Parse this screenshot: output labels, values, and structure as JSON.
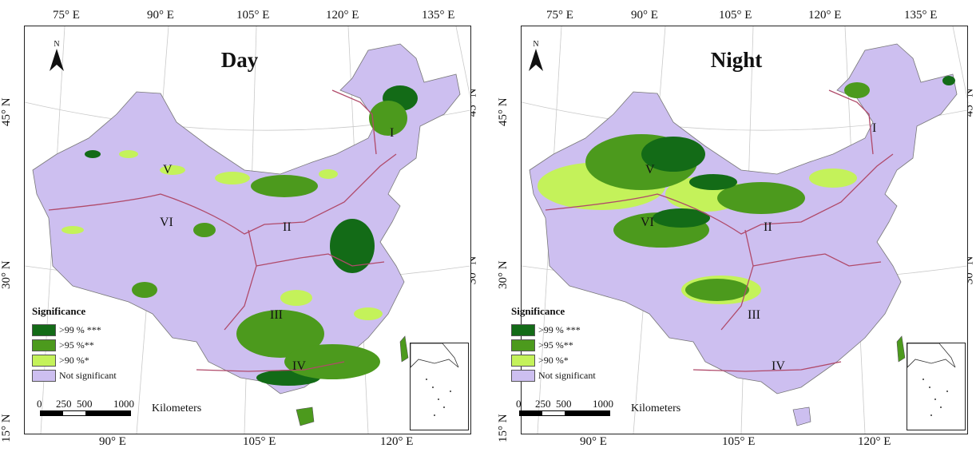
{
  "colors": {
    "not_significant": "#cdbff0",
    "p99": "#136b17",
    "p95": "#4c9a1d",
    "p90": "#c4f25a",
    "boundary": "#b04a6a"
  },
  "panels": [
    {
      "title": "Day",
      "north": "N",
      "ticks_top": [
        "75° E",
        "90° E",
        "105° E",
        "120° E",
        "135° E"
      ],
      "ticks_bottom": [
        "90° E",
        "105° E",
        "120° E"
      ],
      "ticks_left": [
        "45° N",
        "30° N",
        "15° N"
      ],
      "ticks_right": [
        "45° N",
        "30° N"
      ],
      "regions": [
        "I",
        "II",
        "III",
        "IV",
        "V",
        "VI"
      ],
      "legend": {
        "title": "Significance",
        "items": [
          {
            "label": ">99 % ***",
            "color": "#136b17"
          },
          {
            "label": ">95 %**",
            "color": "#4c9a1d"
          },
          {
            "label": ">90 %*",
            "color": "#c4f25a"
          },
          {
            "label": "Not significant",
            "color": "#cdbff0"
          }
        ]
      },
      "scale": {
        "ticks": [
          "0",
          "250",
          "500",
          "1000"
        ],
        "unit": "Kilometers"
      }
    },
    {
      "title": "Night",
      "north": "N",
      "ticks_top": [
        "75° E",
        "90° E",
        "105° E",
        "120° E",
        "135° E"
      ],
      "ticks_bottom": [
        "90° E",
        "105° E",
        "120° E"
      ],
      "ticks_left": [
        "45° N",
        "30° N",
        "15° N"
      ],
      "ticks_right": [
        "45° N",
        "30° N"
      ],
      "regions": [
        "I",
        "II",
        "III",
        "IV",
        "V",
        "VI"
      ],
      "legend": {
        "title": "Significance",
        "items": [
          {
            "label": ">99 % ***",
            "color": "#136b17"
          },
          {
            "label": ">95 %**",
            "color": "#4c9a1d"
          },
          {
            "label": ">90 %*",
            "color": "#c4f25a"
          },
          {
            "label": "Not significant",
            "color": "#cdbff0"
          }
        ]
      },
      "scale": {
        "ticks": [
          "0",
          "250",
          "500",
          "1000"
        ],
        "unit": "Kilometers"
      }
    }
  ]
}
